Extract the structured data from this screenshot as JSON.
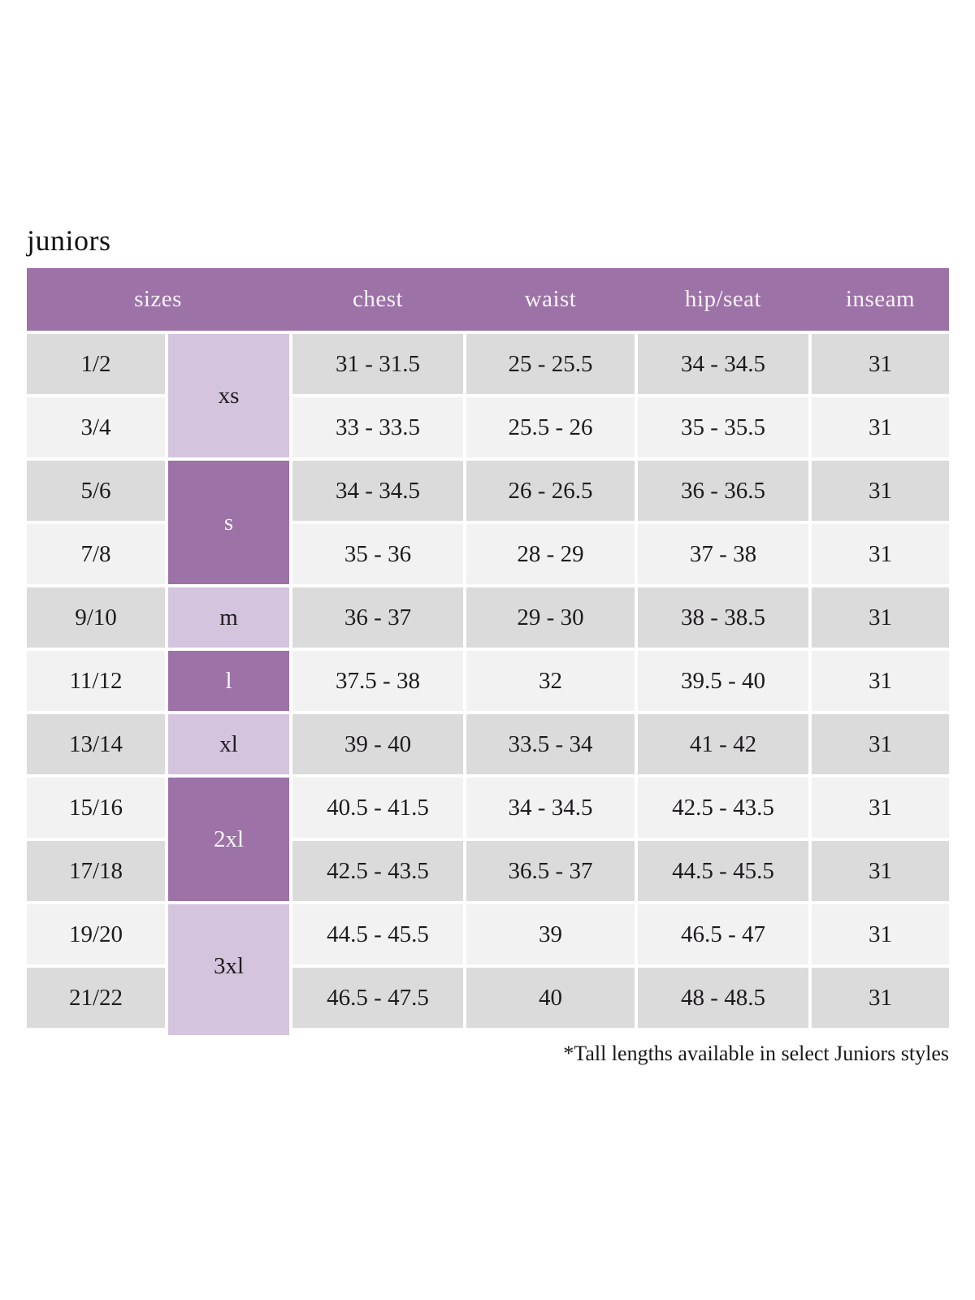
{
  "title": "juniors",
  "table": {
    "headers": {
      "sizes": "sizes",
      "chest": "chest",
      "waist": "waist",
      "hip_seat": "hip/seat",
      "inseam": "inseam"
    },
    "size_groups": [
      {
        "label": "xs",
        "rows": 2,
        "shade": "light"
      },
      {
        "label": "s",
        "rows": 2,
        "shade": "dark"
      },
      {
        "label": "m",
        "rows": 1,
        "shade": "light"
      },
      {
        "label": "l",
        "rows": 1,
        "shade": "dark"
      },
      {
        "label": "xl",
        "rows": 1,
        "shade": "light"
      },
      {
        "label": "2xl",
        "rows": 2,
        "shade": "dark"
      },
      {
        "label": "3xl",
        "rows": 2,
        "shade": "light"
      }
    ],
    "rows": [
      {
        "size": "1/2",
        "chest": "31 - 31.5",
        "waist": "25 - 25.5",
        "hip_seat": "34 - 34.5",
        "inseam": "31"
      },
      {
        "size": "3/4",
        "chest": "33 - 33.5",
        "waist": "25.5 - 26",
        "hip_seat": "35 - 35.5",
        "inseam": "31"
      },
      {
        "size": "5/6",
        "chest": "34 - 34.5",
        "waist": "26 - 26.5",
        "hip_seat": "36 - 36.5",
        "inseam": "31"
      },
      {
        "size": "7/8",
        "chest": "35 - 36",
        "waist": "28 - 29",
        "hip_seat": "37 - 38",
        "inseam": "31"
      },
      {
        "size": "9/10",
        "chest": "36 - 37",
        "waist": "29 - 30",
        "hip_seat": "38 - 38.5",
        "inseam": "31"
      },
      {
        "size": "11/12",
        "chest": "37.5 - 38",
        "waist": "32",
        "hip_seat": "39.5 - 40",
        "inseam": "31"
      },
      {
        "size": "13/14",
        "chest": "39 - 40",
        "waist": "33.5 - 34",
        "hip_seat": "41 - 42",
        "inseam": "31"
      },
      {
        "size": "15/16",
        "chest": "40.5 - 41.5",
        "waist": "34 - 34.5",
        "hip_seat": "42.5 - 43.5",
        "inseam": "31"
      },
      {
        "size": "17/18",
        "chest": "42.5 - 43.5",
        "waist": "36.5 - 37",
        "hip_seat": "44.5 - 45.5",
        "inseam": "31"
      },
      {
        "size": "19/20",
        "chest": "44.5 - 45.5",
        "waist": "39",
        "hip_seat": "46.5 - 47",
        "inseam": "31"
      },
      {
        "size": "21/22",
        "chest": "46.5 - 47.5",
        "waist": "40",
        "hip_seat": "48 - 48.5",
        "inseam": "31"
      }
    ]
  },
  "footnote": "*Tall lengths available in select Juniors styles",
  "colors": {
    "header_purple": "#9d72a7",
    "dark_purple_cell": "#9d72a7",
    "light_purple_cell": "#d5c4dd",
    "row_gray_dark": "#dbdbdb",
    "row_gray_light": "#f2f2f2",
    "header_text": "#f8f3f8",
    "body_text": "#1d1b1d"
  }
}
